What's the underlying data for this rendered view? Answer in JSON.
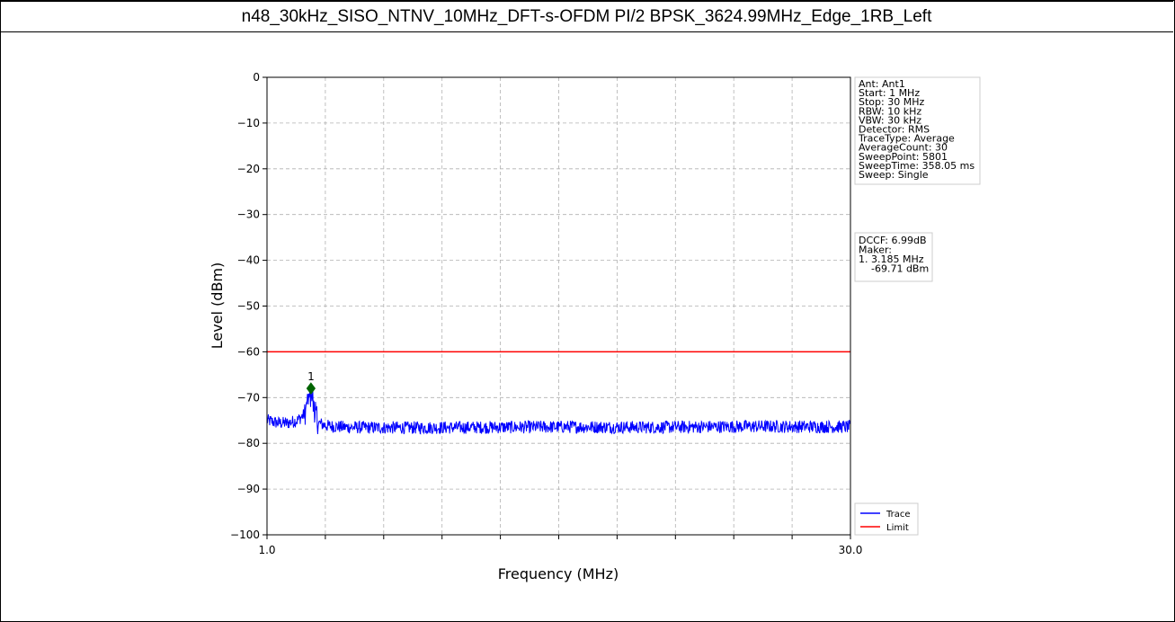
{
  "header": {
    "title": "n48_30kHz_SISO_NTNV_10MHz_DFT-s-OFDM PI/2 BPSK_3624.99MHz_Edge_1RB_Left"
  },
  "info_box": {
    "lines": [
      "Ant: Ant1",
      "Start: 1 MHz",
      "Stop: 30 MHz",
      "RBW: 10 kHz",
      "VBW: 30 kHz",
      "Detector: RMS",
      "TraceType: Average",
      "AverageCount: 30",
      "SweepPoint: 5801",
      "SweepTime: 358.05 ms",
      "Sweep: Single"
    ]
  },
  "marker_box": {
    "lines": [
      "DCCF: 6.99dB",
      "Maker:",
      "1. 3.185 MHz",
      "    -69.71 dBm"
    ]
  },
  "chart_data": {
    "type": "line",
    "xlabel": "Frequency (MHz)",
    "ylabel": "Level (dBm)",
    "xlim": [
      1.0,
      30.0
    ],
    "ylim": [
      -100,
      0
    ],
    "x_tick_labels": [
      "1.0",
      "30.0"
    ],
    "y_ticks": [
      0,
      -10,
      -20,
      -30,
      -40,
      -50,
      -60,
      -70,
      -80,
      -90,
      -100
    ],
    "grid": true,
    "legend": {
      "placement": "lower-right",
      "entries": [
        "Trace",
        "Limit"
      ]
    },
    "series": [
      {
        "name": "Trace",
        "color": "#0000ff",
        "noise_floor_dbm": -76.5,
        "points": [
          [
            1.0,
            -75.0
          ],
          [
            1.5,
            -75.5
          ],
          [
            2.0,
            -75.6
          ],
          [
            2.5,
            -75.0
          ],
          [
            2.9,
            -73.5
          ],
          [
            3.185,
            -69.71
          ],
          [
            3.5,
            -75.5
          ],
          [
            4.0,
            -76.2
          ],
          [
            5.0,
            -76.5
          ],
          [
            8.0,
            -76.6
          ],
          [
            12.0,
            -76.5
          ],
          [
            16.0,
            -76.4
          ],
          [
            20.0,
            -76.5
          ],
          [
            25.0,
            -76.3
          ],
          [
            30.0,
            -76.4
          ]
        ]
      },
      {
        "name": "Limit",
        "color": "#ff0000",
        "value_dbm": -60
      }
    ],
    "marker": {
      "label": "1",
      "x": 3.185,
      "y": -68.0,
      "color": "#006400"
    }
  }
}
